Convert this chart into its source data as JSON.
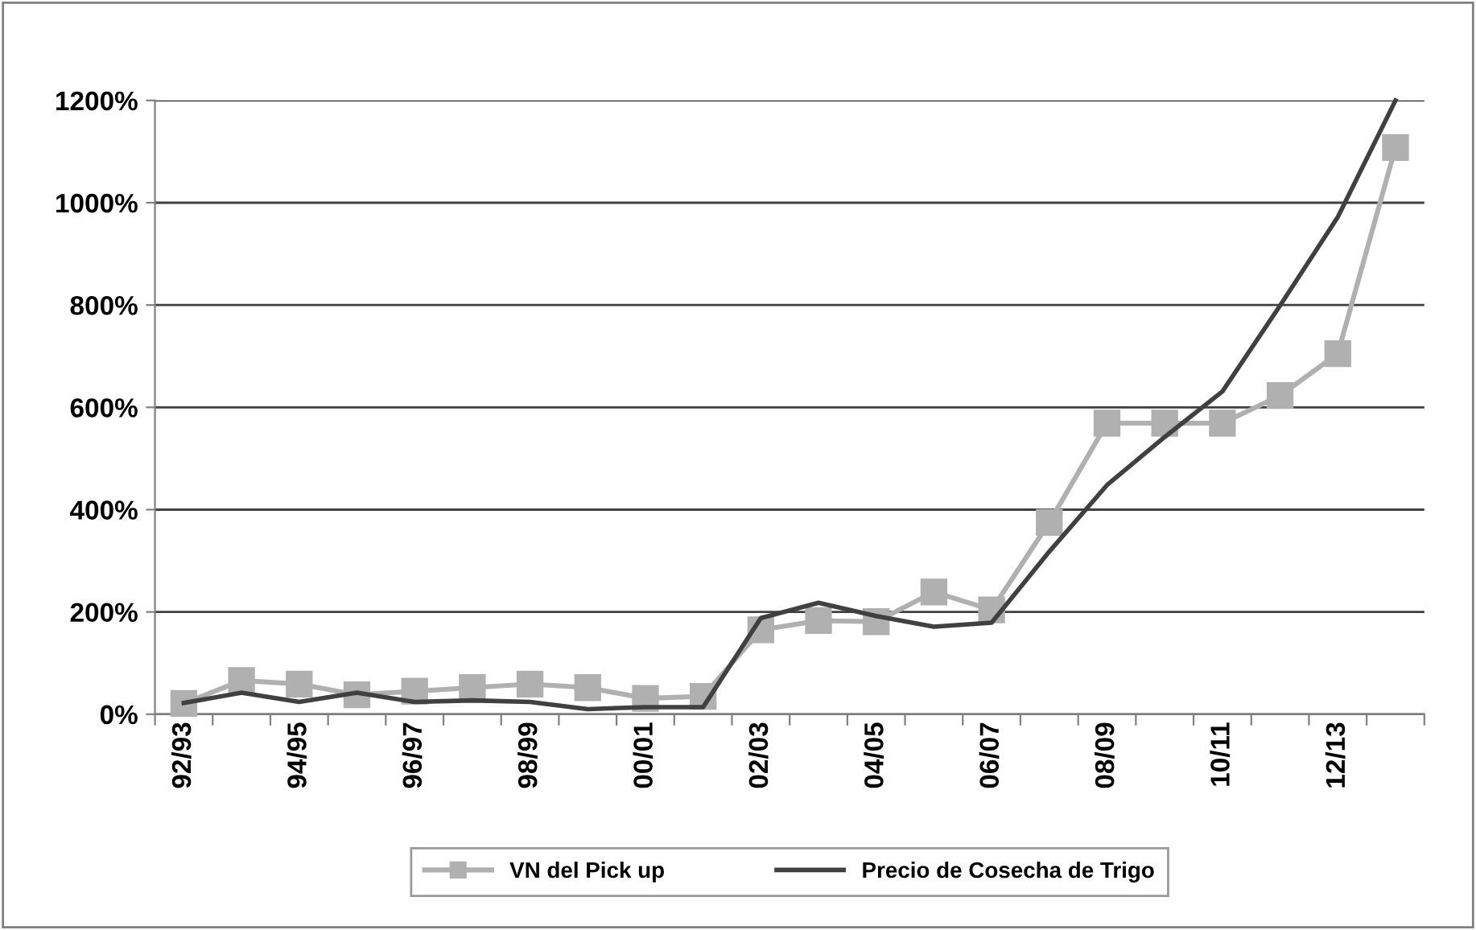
{
  "chart_data": {
    "type": "line",
    "categories": [
      "92/93",
      null,
      "94/95",
      null,
      "96/97",
      null,
      "98/99",
      null,
      "00/01",
      null,
      "02/03",
      null,
      "04/05",
      null,
      "06/07",
      null,
      "08/09",
      null,
      "10/11",
      null,
      "12/13",
      null
    ],
    "series": [
      {
        "name": "VN del Pick up",
        "color": "#b0b0b0",
        "marker": "square",
        "values": [
          21,
          66,
          59,
          38,
          45,
          52,
          59,
          52,
          31,
          35,
          165,
          183,
          181,
          239,
          204,
          375,
          569,
          569,
          569,
          623,
          705,
          1108
        ]
      },
      {
        "name": "Precio de Cosecha de Trigo",
        "color": "#404040",
        "marker": "none",
        "values": [
          22,
          42,
          24,
          42,
          24,
          27,
          24,
          10,
          14,
          14,
          188,
          218,
          192,
          171,
          179,
          318,
          448,
          542,
          631,
          799,
          972,
          1200
        ]
      }
    ],
    "ylim": [
      0,
      1200
    ],
    "yticks": [
      {
        "value": 0,
        "label": "0%"
      },
      {
        "value": 200,
        "label": "200%"
      },
      {
        "value": 400,
        "label": "400%"
      },
      {
        "value": 600,
        "label": "600%"
      },
      {
        "value": 800,
        "label": "800%"
      },
      {
        "value": 1000,
        "label": "1000%"
      },
      {
        "value": 1200,
        "label": "1200%"
      }
    ],
    "grid": "y",
    "legend": "bottom",
    "line_style": "solid"
  }
}
